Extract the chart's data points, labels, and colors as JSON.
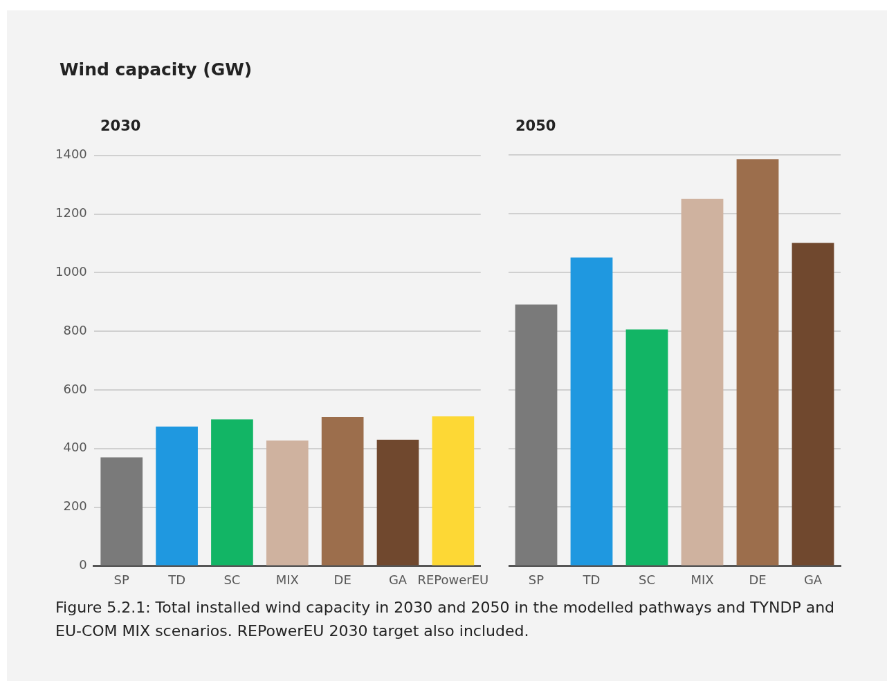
{
  "chart_data": [
    {
      "type": "bar",
      "ylabel": "Wind capacity (GW)",
      "title": "2030",
      "categories": [
        "SP",
        "TD",
        "SC",
        "MIX",
        "DE",
        "GA",
        "REPowerEU"
      ],
      "values": [
        370,
        475,
        500,
        427,
        508,
        430,
        510
      ],
      "colors": [
        "#7a7a7a",
        "#1f98e0",
        "#12b565",
        "#cfb29f",
        "#9c6e4c",
        "#70482e",
        "#fdd835"
      ],
      "ylim": [
        0,
        1400
      ],
      "yticks": [
        0,
        200,
        400,
        600,
        800,
        1000,
        1200,
        1400
      ],
      "grid": "y",
      "legend": false,
      "annotations": [
        "Figure 5.2.1: Total installed wind capacity in 2030 and 2050 in the modelled pathways and TYNDP and EU-COM MIX scenarios. REPowerEU 2030 target also included."
      ]
    },
    {
      "type": "bar",
      "title": "2050",
      "categories": [
        "SP",
        "TD",
        "SC",
        "MIX",
        "DE",
        "GA"
      ],
      "values": [
        890,
        1050,
        805,
        1250,
        1385,
        1100
      ],
      "colors": [
        "#7a7a7a",
        "#1f98e0",
        "#12b565",
        "#cfb29f",
        "#9c6e4c",
        "#70482e"
      ],
      "ylim": [
        0,
        1400
      ],
      "yticks": [
        0,
        200,
        400,
        600,
        800,
        1000,
        1200,
        1400
      ],
      "grid": "y",
      "legend": false,
      "tick_labels": "x"
    }
  ]
}
